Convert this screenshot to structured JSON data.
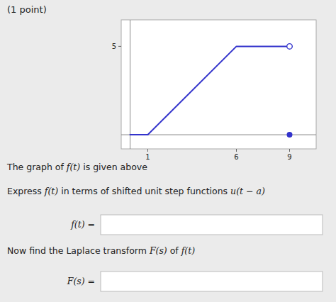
{
  "chart_data": {
    "type": "line",
    "title": "(1 point)",
    "series": [
      {
        "type": "line",
        "color": "#3333cc",
        "x": [
          0,
          1,
          6,
          9
        ],
        "values": [
          0,
          0,
          5,
          5
        ]
      },
      {
        "type": "scatter",
        "marker": "open-circle",
        "color": "#3333cc",
        "x": [
          9
        ],
        "values": [
          5
        ]
      },
      {
        "type": "scatter",
        "marker": "circle",
        "color": "#3333cc",
        "x": [
          9
        ],
        "values": [
          0
        ]
      }
    ],
    "xlim": [
      -0.5,
      10.5
    ],
    "ylim": [
      -0.8,
      6.5
    ],
    "xticks": [
      1,
      6,
      9
    ],
    "yticks": [
      5
    ],
    "grid": false,
    "annotations": [
      "The graph of f(t) is given above",
      "Express f(t) in terms of shifted unit step functions u(t − a)",
      "f(t) =",
      "Now find the Laplace transform F(s) of f(t)",
      "F(s) ="
    ]
  }
}
